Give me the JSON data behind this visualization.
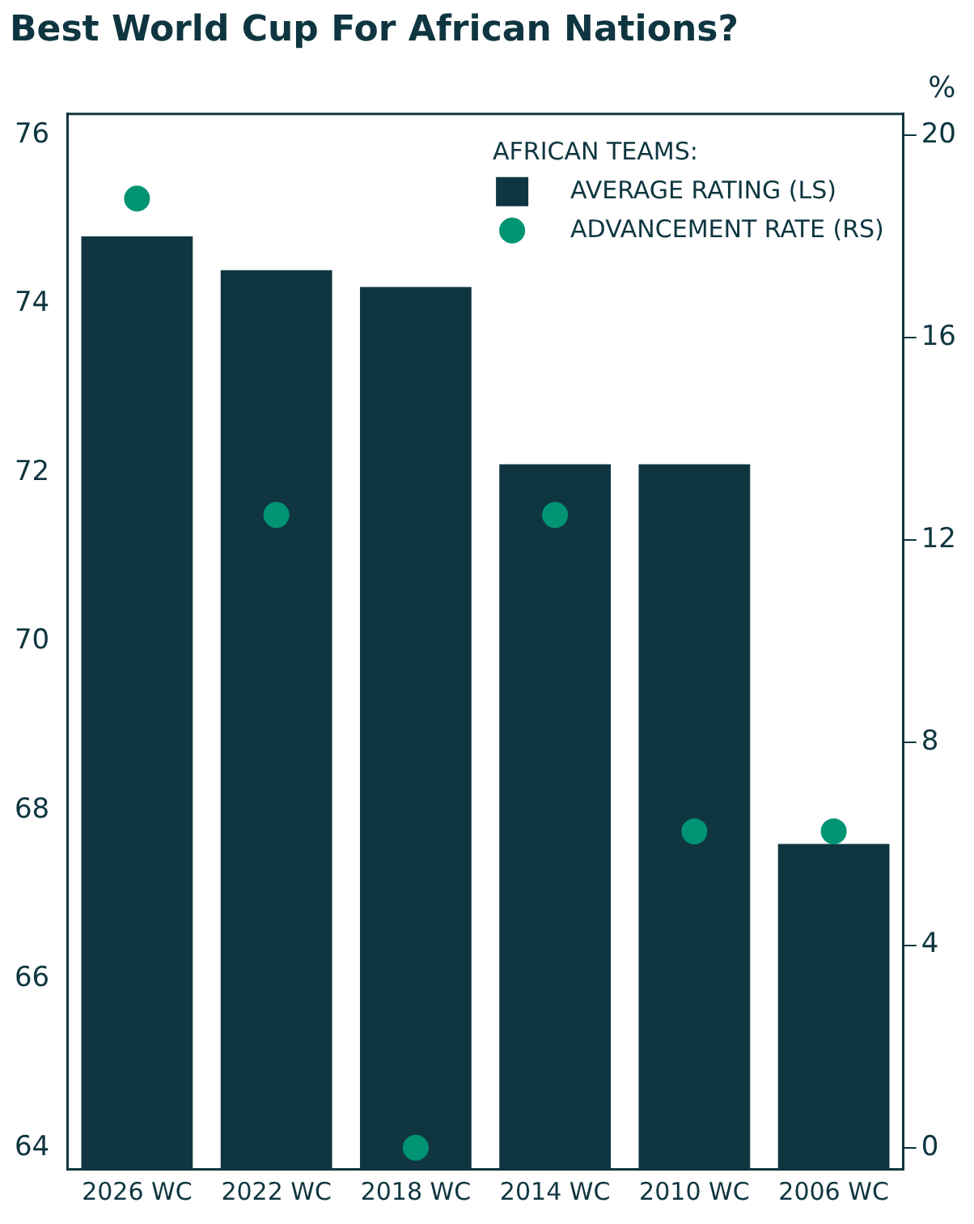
{
  "chart_data": {
    "type": "bar",
    "title": "Best World Cup For African Nations?",
    "y2label": "%",
    "legend_title": "AFRICAN TEAMS:",
    "legend": "top right",
    "grid": false,
    "categories": [
      "2026 WC",
      "2022 WC",
      "2018 WC",
      "2014 WC",
      "2010 WC",
      "2006 WC"
    ],
    "series": [
      {
        "name": "AVERAGE RATING (LS)",
        "color": "#0f3640",
        "values": [
          74.8,
          74.4,
          74.2,
          72.1,
          72.1,
          67.6
        ]
      },
      {
        "name": "ADVANCEMENT RATE (RS)",
        "type": "scatter",
        "axis": "y2",
        "marker": "circle",
        "color": "#009474",
        "values": [
          18.75,
          12.5,
          0,
          12.5,
          6.25,
          6.25
        ]
      }
    ],
    "ylim": [
      63.75,
      76.25
    ],
    "yticks": [
      64,
      66,
      68,
      70,
      72,
      74,
      76
    ],
    "y2lim": [
      -0.42,
      20.42
    ],
    "y2ticks": [
      0,
      4,
      8,
      12,
      16,
      20
    ]
  }
}
